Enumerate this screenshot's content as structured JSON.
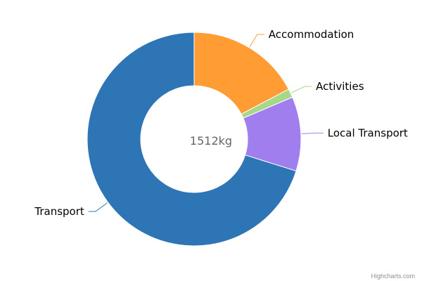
{
  "chart_data": {
    "type": "pie",
    "variant": "donut",
    "center_label": "1512kg",
    "slices": [
      {
        "label": "Accommodation",
        "value": 261,
        "color": "#FF9C33"
      },
      {
        "label": "Activities",
        "value": 20,
        "color": "#A6D887"
      },
      {
        "label": "Local Transport",
        "value": 170,
        "color": "#A07EEE"
      },
      {
        "label": "Transport",
        "value": 1061,
        "color": "#2E75B6"
      }
    ],
    "legend": "none"
  },
  "credits": "Highcharts.com"
}
